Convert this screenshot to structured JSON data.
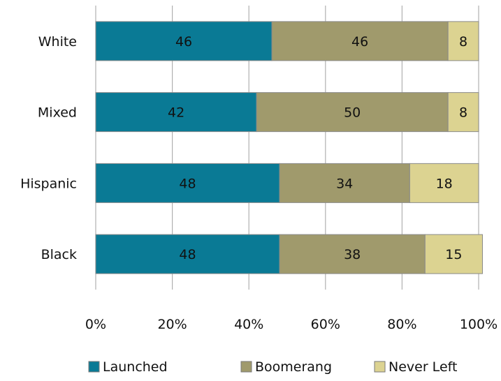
{
  "chart_data": {
    "type": "bar",
    "orientation": "horizontal",
    "stacked": true,
    "percent_stacked": true,
    "categories": [
      "White",
      "Mixed",
      "Hispanic",
      "Black"
    ],
    "series": [
      {
        "name": "Launched",
        "color": "#0a7a95",
        "values": [
          46,
          42,
          48,
          48
        ]
      },
      {
        "name": "Boomerang",
        "color": "#a09a6c",
        "values": [
          46,
          50,
          34,
          38
        ]
      },
      {
        "name": "Never Left",
        "color": "#dcd391",
        "values": [
          8,
          8,
          18,
          15
        ]
      }
    ],
    "title": "",
    "xlabel": "",
    "ylabel": "",
    "xlim": [
      0,
      100
    ],
    "x_ticks": [
      "0%",
      "20%",
      "40%",
      "60%",
      "80%",
      "100%"
    ],
    "grid": "vertical",
    "grid_color": "#b0b0b0",
    "legend_position": "bottom"
  }
}
